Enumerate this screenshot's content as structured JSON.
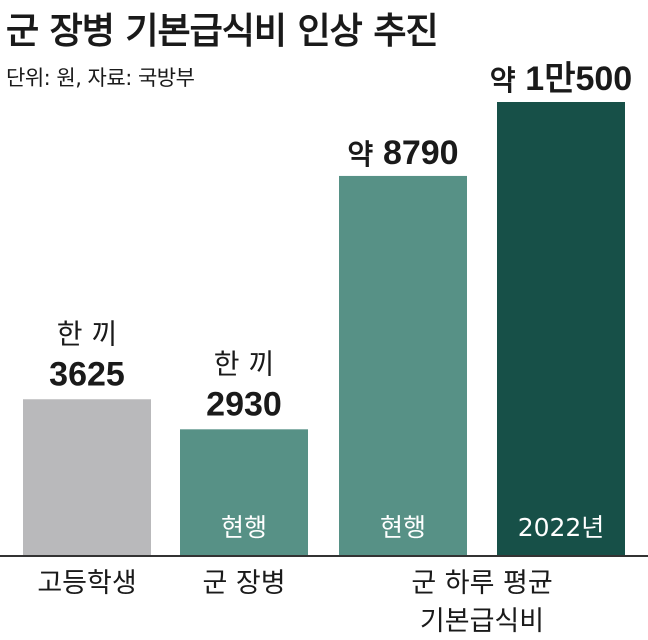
{
  "title": "군 장병 기본급식비 인상 추진",
  "subtitle": "단위: 원, 자료: 국방부",
  "chart_data": {
    "type": "bar",
    "title": "군 장병 기본급식비 인상 추진",
    "unit": "원",
    "source": "국방부",
    "bars": [
      {
        "category": "고등학생",
        "value": 3625,
        "top_label": "한 끼",
        "value_label": "3625",
        "inside_label": "",
        "color": "#b9b9bb"
      },
      {
        "category": "군 장병",
        "value": 2930,
        "top_label": "한 끼",
        "value_label": "2930",
        "inside_label": "현행",
        "color": "#579186"
      },
      {
        "category": "군 하루 평균 기본급식비",
        "value": 8790,
        "top_label": "약",
        "value_label": "8790",
        "inside_label": "현행",
        "color": "#579186"
      },
      {
        "category": "군 하루 평균 기본급식비",
        "value": 10500,
        "top_label": "약",
        "value_label": "1만500",
        "inside_label": "2022년",
        "color": "#175048"
      }
    ],
    "category_labels": [
      "고등학생",
      "군 장병",
      "군 하루 평균 기본급식비"
    ],
    "category_lines": [
      [
        "고등학생"
      ],
      [
        "군 장병"
      ],
      [
        "군 하루 평균",
        "기본급식비"
      ]
    ]
  }
}
